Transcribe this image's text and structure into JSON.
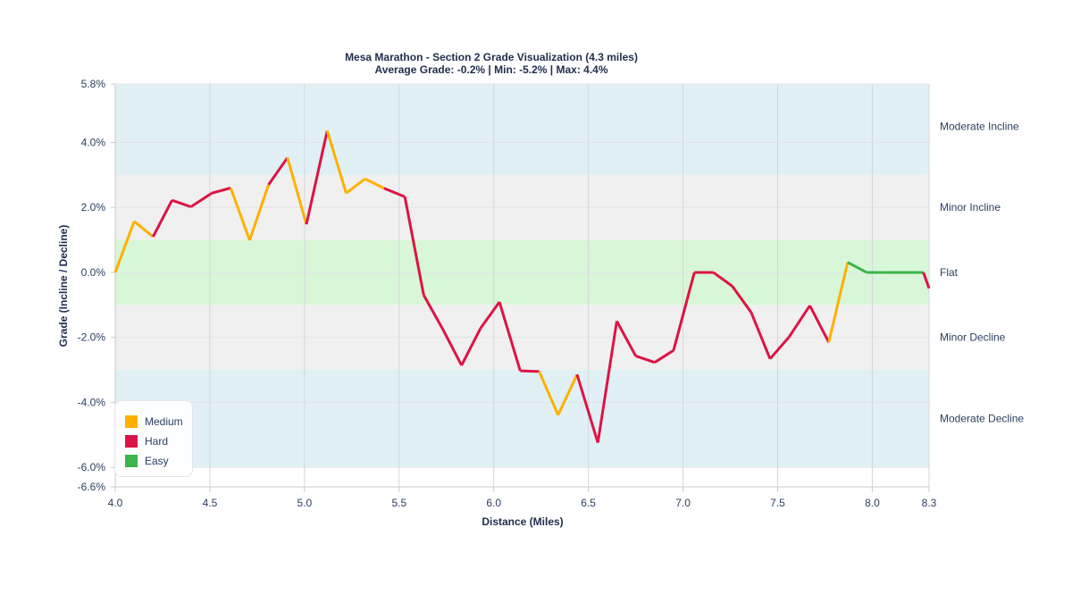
{
  "title": {
    "line1": "Mesa Marathon - Section 2 Grade Visualization (4.3 miles)",
    "line2": "Average Grade: -0.2% | Min: -5.2% | Max: 4.4%"
  },
  "axes": {
    "x_title": "Distance (Miles)",
    "y_title": "Grade (Incline / Decline)",
    "x_ticks": [
      "4.0",
      "4.5",
      "5.0",
      "5.5",
      "6.0",
      "6.5",
      "7.0",
      "7.5",
      "8.0",
      "8.3"
    ],
    "y_ticks": [
      "5.8%",
      "4.0%",
      "2.0%",
      "0.0%",
      "-2.0%",
      "-4.0%",
      "-6.0%",
      "-6.6%"
    ]
  },
  "zones": [
    {
      "label": "Moderate Incline",
      "from": 3,
      "to": 5.8,
      "color": "#e1f0f5"
    },
    {
      "label": "Minor Incline",
      "from": 1,
      "to": 3,
      "color": "#f0f0f0"
    },
    {
      "label": "Flat",
      "from": -1,
      "to": 1,
      "color": "#d8f7d8"
    },
    {
      "label": "Minor Decline",
      "from": -3,
      "to": -1,
      "color": "#f0f0f0"
    },
    {
      "label": "Moderate Decline",
      "from": -6,
      "to": -3,
      "color": "#e1f0f5"
    }
  ],
  "legend": {
    "items": [
      {
        "label": "Medium",
        "color": "#ffb000"
      },
      {
        "label": "Hard",
        "color": "#dc1446"
      },
      {
        "label": "Easy",
        "color": "#3cb44b"
      }
    ]
  },
  "chart_data": {
    "type": "line",
    "title": "Mesa Marathon - Section 2 Grade Visualization (4.3 miles)",
    "subtitle": "Average Grade: -0.2% | Min: -5.2% | Max: 4.4%",
    "xlabel": "Distance (Miles)",
    "ylabel": "Grade (Incline / Decline)",
    "xlim": [
      4.0,
      8.3
    ],
    "ylim": [
      -6.6,
      5.8
    ],
    "x_ticks": [
      4.0,
      4.5,
      5.0,
      5.5,
      6.0,
      6.5,
      7.0,
      7.5,
      8.0,
      8.3
    ],
    "y_ticks": [
      5.8,
      4.0,
      2.0,
      0.0,
      -2.0,
      -4.0,
      -6.0,
      -6.6
    ],
    "grid": true,
    "legend_position": "bottom-left",
    "x": [
      4.0,
      4.1,
      4.2,
      4.3,
      4.4,
      4.51,
      4.61,
      4.71,
      4.81,
      4.91,
      5.01,
      5.12,
      5.22,
      5.32,
      5.42,
      5.53,
      5.63,
      5.73,
      5.83,
      5.93,
      6.03,
      6.14,
      6.24,
      6.34,
      6.44,
      6.55,
      6.65,
      6.75,
      6.85,
      6.95,
      7.06,
      7.16,
      7.26,
      7.36,
      7.46,
      7.56,
      7.67,
      7.77,
      7.87,
      7.97,
      8.07,
      8.17,
      8.27,
      8.3
    ],
    "y": [
      0.0,
      1.57,
      1.1,
      2.22,
      2.02,
      2.44,
      2.6,
      0.99,
      2.7,
      3.53,
      1.48,
      4.36,
      2.44,
      2.88,
      2.59,
      2.33,
      -0.7,
      -1.74,
      -2.86,
      -1.72,
      -0.91,
      -3.03,
      -3.05,
      -4.39,
      -3.14,
      -5.24,
      -1.5,
      -2.57,
      -2.77,
      -2.4,
      0.0,
      0.0,
      -0.42,
      -1.23,
      -2.66,
      -1.99,
      -1.02,
      -2.15,
      0.31,
      0.0,
      0.0,
      0.0,
      0.0,
      -0.49
    ],
    "segment_difficulty": [
      "Medium",
      "Medium",
      "Hard",
      "Hard",
      "Hard",
      "Hard",
      "Medium",
      "Medium",
      "Hard",
      "Medium",
      "Hard",
      "Medium",
      "Medium",
      "Medium",
      "Hard",
      "Hard",
      "Hard",
      "Hard",
      "Hard",
      "Hard",
      "Hard",
      "Hard",
      "Medium",
      "Medium",
      "Hard",
      "Hard",
      "Hard",
      "Hard",
      "Hard",
      "Hard",
      "Hard",
      "Hard",
      "Hard",
      "Hard",
      "Hard",
      "Hard",
      "Hard",
      "Medium",
      "Easy",
      "Easy",
      "Easy",
      "Easy",
      "Hard"
    ],
    "series": [
      {
        "name": "Medium",
        "color": "#ffb000"
      },
      {
        "name": "Hard",
        "color": "#dc1446"
      },
      {
        "name": "Easy",
        "color": "#3cb44b"
      }
    ],
    "zone_labels": [
      "Moderate Incline",
      "Minor Incline",
      "Flat",
      "Minor Decline",
      "Moderate Decline"
    ]
  }
}
